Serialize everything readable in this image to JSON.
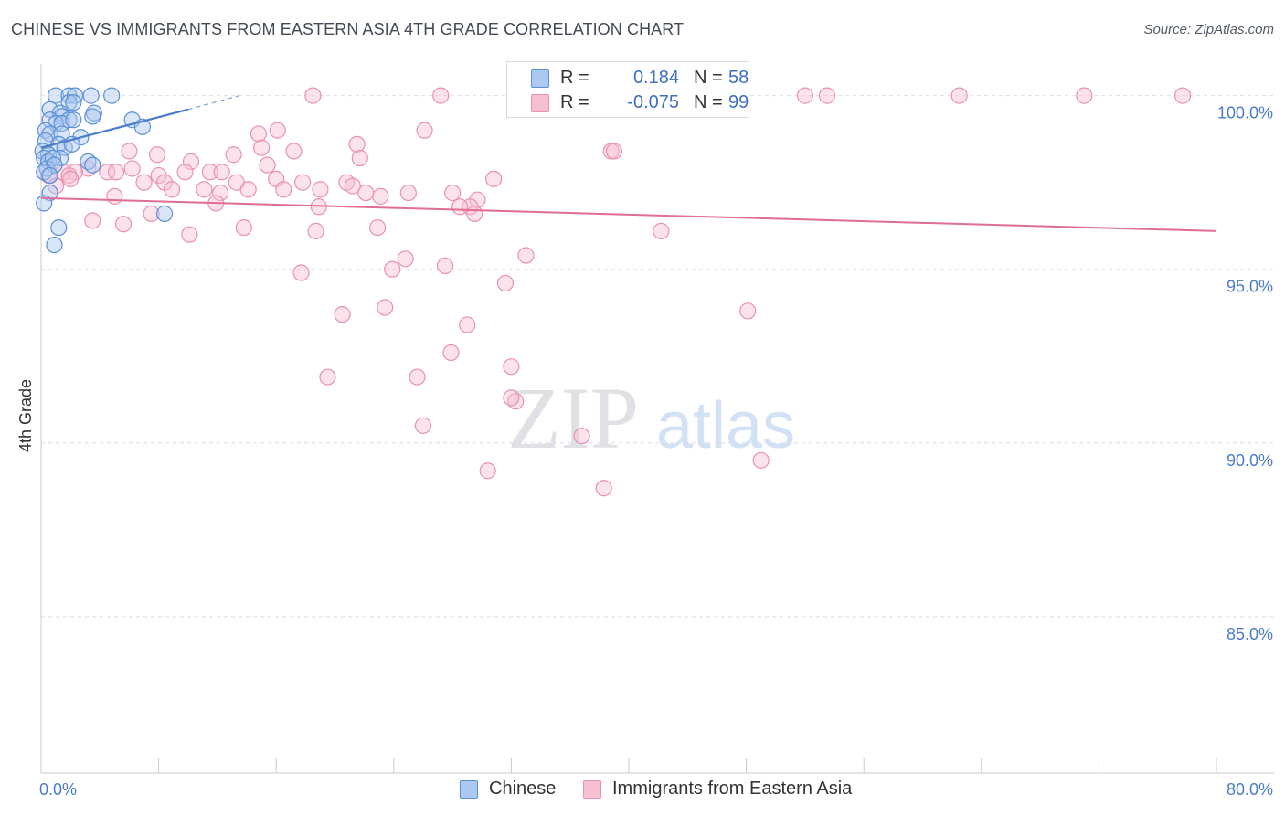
{
  "title": "CHINESE VS IMMIGRANTS FROM EASTERN ASIA 4TH GRADE CORRELATION CHART",
  "source": "Source: ZipAtlas.com",
  "watermark": {
    "zip": "ZIP",
    "atlas": "atlas"
  },
  "colors": {
    "blue": "#4a7cc9",
    "blue_fill": "#aac8f0",
    "blue_stroke": "#5b8fd6",
    "pink": "#e06c97",
    "pink_fill": "#f7bfd2",
    "pink_stroke": "#ea91b2",
    "grid": "#dcdde2"
  },
  "stats": {
    "rows": [
      {
        "r_label": "R =",
        "r_value": "0.184",
        "n_label": "N =",
        "n_value": "58"
      },
      {
        "r_label": "R =",
        "r_value": "-0.075",
        "n_label": "N =",
        "n_value": "99"
      }
    ]
  },
  "legend": {
    "items": [
      "Chinese",
      "Immigrants from Eastern Asia"
    ]
  },
  "chart_data": {
    "type": "scatter",
    "title": "CHINESE VS IMMIGRANTS FROM EASTERN ASIA 4TH GRADE CORRELATION CHART",
    "xlabel": "",
    "ylabel": "4th Grade",
    "xlim": [
      0,
      80
    ],
    "ylim": [
      80.5,
      100.7
    ],
    "x_tick_labels": [
      "0.0%",
      "80.0%"
    ],
    "y_ticks": [
      85,
      90,
      95,
      100
    ],
    "y_tick_labels": [
      "85.0%",
      "90.0%",
      "95.0%",
      "100.0%"
    ],
    "grid": true,
    "legend_position": "bottom-center",
    "series": [
      {
        "name": "Chinese",
        "color": "#5b8fd6",
        "trend": {
          "x": [
            0,
            10
          ],
          "y": [
            98.5,
            99.6
          ],
          "dashed_to": [
            13.5,
            100.0
          ]
        },
        "points": [
          [
            1.0,
            100.0
          ],
          [
            1.9,
            100.0
          ],
          [
            2.3,
            100.0
          ],
          [
            3.4,
            100.0
          ],
          [
            4.8,
            100.0
          ],
          [
            1.9,
            99.8
          ],
          [
            2.2,
            99.8
          ],
          [
            0.6,
            99.6
          ],
          [
            1.3,
            99.5
          ],
          [
            1.4,
            99.4
          ],
          [
            3.6,
            99.5
          ],
          [
            0.6,
            99.3
          ],
          [
            1.9,
            99.3
          ],
          [
            3.5,
            99.4
          ],
          [
            1.0,
            99.2
          ],
          [
            1.4,
            99.2
          ],
          [
            2.2,
            99.3
          ],
          [
            6.2,
            99.3
          ],
          [
            6.9,
            99.1
          ],
          [
            0.3,
            99.0
          ],
          [
            0.6,
            98.9
          ],
          [
            1.4,
            98.9
          ],
          [
            2.7,
            98.8
          ],
          [
            0.3,
            98.7
          ],
          [
            1.2,
            98.6
          ],
          [
            1.6,
            98.5
          ],
          [
            2.1,
            98.6
          ],
          [
            0.1,
            98.4
          ],
          [
            0.5,
            98.3
          ],
          [
            1.3,
            98.2
          ],
          [
            0.2,
            98.2
          ],
          [
            0.5,
            98.1
          ],
          [
            0.8,
            98.2
          ],
          [
            3.2,
            98.1
          ],
          [
            0.4,
            97.9
          ],
          [
            0.9,
            98.0
          ],
          [
            0.2,
            97.8
          ],
          [
            3.5,
            98.0
          ],
          [
            0.6,
            97.7
          ],
          [
            0.6,
            97.2
          ],
          [
            0.2,
            96.9
          ],
          [
            1.2,
            96.2
          ],
          [
            0.9,
            95.7
          ],
          [
            8.4,
            96.6
          ]
        ]
      },
      {
        "name": "Immigrants from Eastern Asia",
        "color": "#ea91b2",
        "trend": {
          "x": [
            0,
            80
          ],
          "y": [
            97.05,
            96.1
          ]
        },
        "points": [
          [
            18.5,
            100.0
          ],
          [
            27.2,
            100.0
          ],
          [
            37.0,
            100.0
          ],
          [
            38.1,
            100.0
          ],
          [
            43.0,
            100.0
          ],
          [
            53.5,
            100.0
          ],
          [
            62.5,
            100.0
          ],
          [
            71.0,
            100.0
          ],
          [
            77.7,
            100.0
          ],
          [
            26.1,
            99.0
          ],
          [
            14.8,
            98.9
          ],
          [
            21.5,
            98.6
          ],
          [
            15.0,
            98.5
          ],
          [
            17.2,
            98.4
          ],
          [
            6.0,
            98.4
          ],
          [
            7.9,
            98.3
          ],
          [
            13.1,
            98.3
          ],
          [
            21.7,
            98.2
          ],
          [
            38.8,
            98.4
          ],
          [
            10.2,
            98.1
          ],
          [
            15.4,
            98.0
          ],
          [
            3.2,
            97.9
          ],
          [
            6.2,
            97.9
          ],
          [
            4.5,
            97.8
          ],
          [
            2.3,
            97.8
          ],
          [
            1.5,
            97.8
          ],
          [
            9.8,
            97.8
          ],
          [
            11.5,
            97.8
          ],
          [
            12.3,
            97.8
          ],
          [
            0.5,
            97.7
          ],
          [
            1.9,
            97.7
          ],
          [
            2.0,
            97.6
          ],
          [
            5.1,
            97.8
          ],
          [
            8.0,
            97.7
          ],
          [
            16.0,
            97.6
          ],
          [
            30.8,
            97.6
          ],
          [
            7.0,
            97.5
          ],
          [
            8.4,
            97.5
          ],
          [
            13.3,
            97.5
          ],
          [
            17.8,
            97.5
          ],
          [
            20.8,
            97.5
          ],
          [
            21.2,
            97.4
          ],
          [
            1.0,
            97.4
          ],
          [
            8.9,
            97.3
          ],
          [
            11.1,
            97.3
          ],
          [
            14.1,
            97.3
          ],
          [
            16.5,
            97.3
          ],
          [
            19.0,
            97.3
          ],
          [
            22.1,
            97.2
          ],
          [
            25.0,
            97.2
          ],
          [
            28.0,
            97.2
          ],
          [
            12.2,
            97.2
          ],
          [
            5.0,
            97.1
          ],
          [
            23.1,
            97.1
          ],
          [
            11.9,
            96.9
          ],
          [
            29.7,
            97.0
          ],
          [
            29.2,
            96.8
          ],
          [
            18.9,
            96.8
          ],
          [
            28.5,
            96.8
          ],
          [
            29.5,
            96.6
          ],
          [
            7.5,
            96.6
          ],
          [
            3.5,
            96.4
          ],
          [
            5.6,
            96.3
          ],
          [
            13.8,
            96.2
          ],
          [
            22.9,
            96.2
          ],
          [
            18.7,
            96.1
          ],
          [
            10.1,
            96.0
          ],
          [
            42.2,
            96.1
          ],
          [
            27.5,
            95.1
          ],
          [
            24.8,
            95.3
          ],
          [
            33.0,
            95.4
          ],
          [
            17.7,
            94.9
          ],
          [
            23.9,
            95.0
          ],
          [
            31.6,
            94.6
          ],
          [
            23.4,
            93.9
          ],
          [
            20.5,
            93.7
          ],
          [
            48.1,
            93.8
          ],
          [
            29.0,
            93.4
          ],
          [
            27.9,
            92.6
          ],
          [
            32.0,
            92.2
          ],
          [
            19.5,
            91.9
          ],
          [
            25.6,
            91.9
          ],
          [
            32.3,
            91.2
          ],
          [
            32.0,
            91.3
          ],
          [
            26.0,
            90.5
          ],
          [
            36.8,
            90.2
          ],
          [
            49.0,
            89.5
          ],
          [
            30.4,
            89.2
          ],
          [
            38.3,
            88.7
          ],
          [
            39.0,
            98.4
          ],
          [
            16.1,
            99.0
          ],
          [
            38.3,
            100.0
          ],
          [
            52.0,
            100.0
          ]
        ]
      }
    ]
  }
}
